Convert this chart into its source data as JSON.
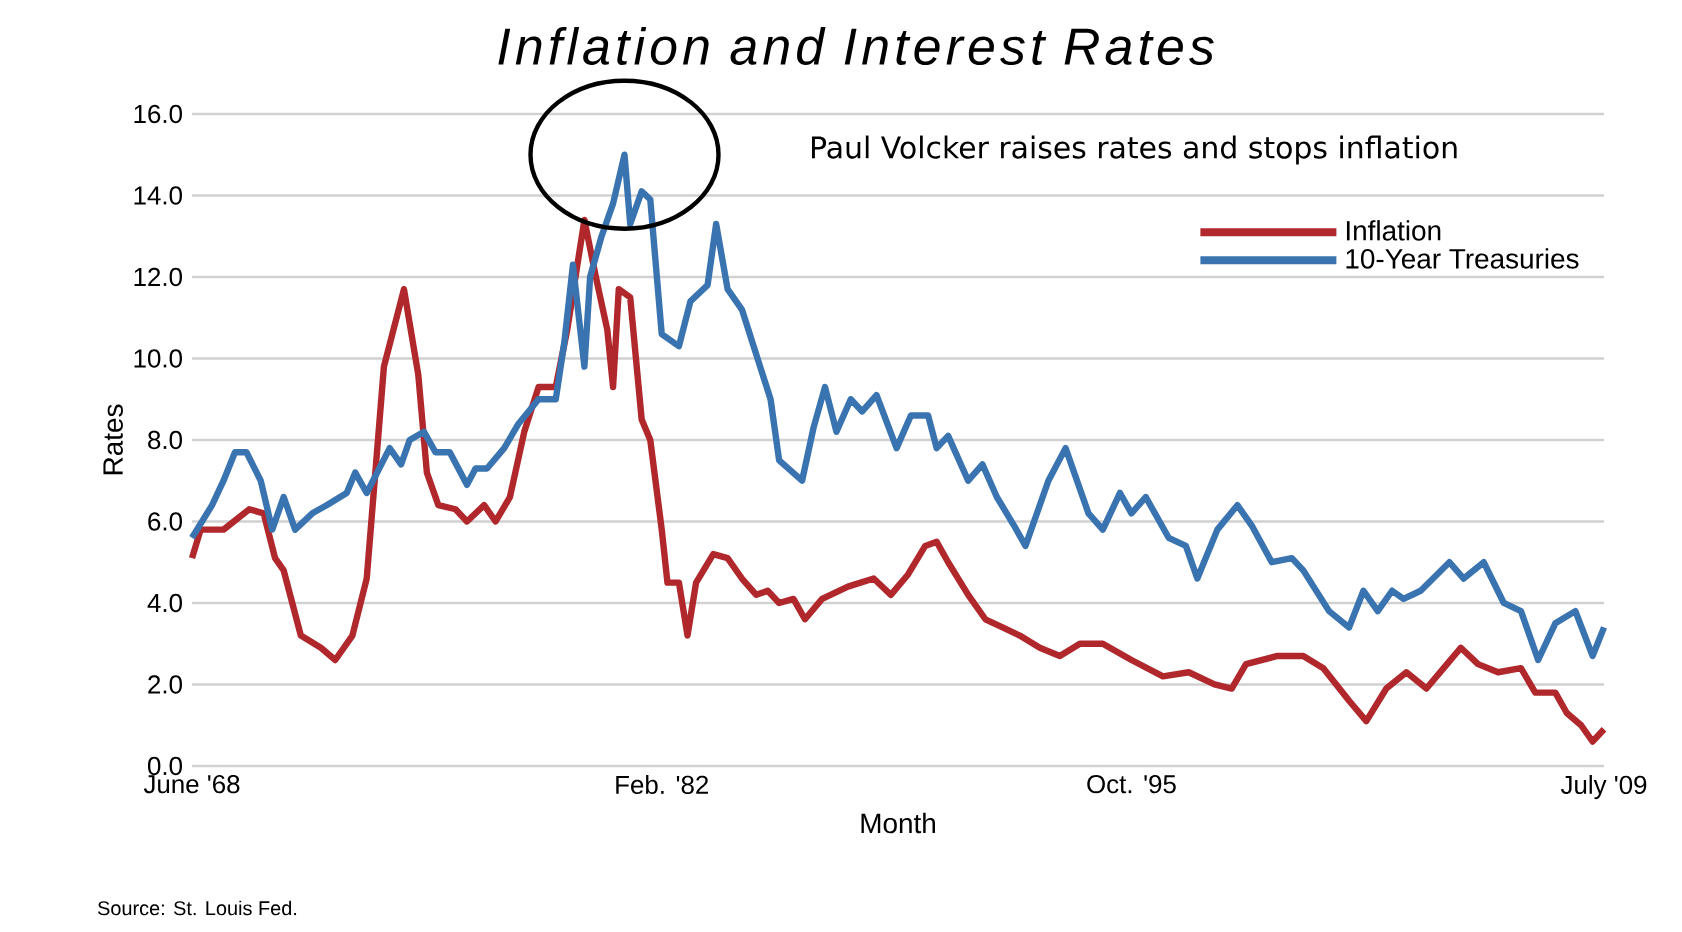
{
  "chart_data": {
    "type": "line",
    "title": "Inflation and Interest Rates",
    "xlabel": "Month",
    "ylabel": "Rates",
    "xlim": [
      "1968-06",
      "2009-07"
    ],
    "xticks": [
      {
        "value": "1968-06",
        "label": "June '68"
      },
      {
        "value": "1982-02",
        "label": "Feb. '82"
      },
      {
        "value": "1995-10",
        "label": "Oct. '95"
      },
      {
        "value": "2009-07",
        "label": "July '09"
      }
    ],
    "ylim": [
      0,
      16
    ],
    "yticks": [
      {
        "value": 0,
        "label": "0.0"
      },
      {
        "value": 2,
        "label": "2.0"
      },
      {
        "value": 4,
        "label": "4.0"
      },
      {
        "value": 6,
        "label": "6.0"
      },
      {
        "value": 8,
        "label": "8.0"
      },
      {
        "value": 10,
        "label": "10.0"
      },
      {
        "value": 12,
        "label": "12.0"
      },
      {
        "value": 14,
        "label": "14.0"
      },
      {
        "value": 16,
        "label": "16.0"
      }
    ],
    "grid": "y",
    "legend": "top right",
    "series": [
      {
        "name": "Inflation",
        "color": "#b0282c",
        "x": [
          "1968-06",
          "1968-09",
          "1969-05",
          "1970-02",
          "1970-07",
          "1970-11",
          "1971-02",
          "1971-08",
          "1972-03",
          "1972-08",
          "1973-02",
          "1973-07",
          "1974-01",
          "1974-08",
          "1975-01",
          "1975-04",
          "1975-08",
          "1976-02",
          "1976-06",
          "1976-12",
          "1977-04",
          "1977-09",
          "1978-02",
          "1978-07",
          "1979-01",
          "1979-05",
          "1979-11",
          "1980-03",
          "1980-07",
          "1980-09",
          "1980-11",
          "1981-03",
          "1981-07",
          "1981-10",
          "1982-02",
          "1982-04",
          "1982-08",
          "1982-11",
          "1983-02",
          "1983-08",
          "1984-01",
          "1984-06",
          "1984-11",
          "1985-03",
          "1985-07",
          "1985-12",
          "1986-04",
          "1986-10",
          "1987-07",
          "1988-04",
          "1988-10",
          "1989-04",
          "1989-10",
          "1990-02",
          "1990-06",
          "1991-01",
          "1991-07",
          "1992-01",
          "1992-07",
          "1993-02",
          "1993-09",
          "1994-04",
          "1994-10",
          "1994-12",
          "1995-10",
          "1996-09",
          "1997-06",
          "1998-03",
          "1998-09",
          "1999-02",
          "2000-01",
          "2000-10",
          "2001-05",
          "2002-02",
          "2002-08",
          "2003-03",
          "2003-10",
          "2004-05",
          "2004-11",
          "2005-05",
          "2005-11",
          "2006-06",
          "2007-02",
          "2007-07",
          "2008-02",
          "2008-06",
          "2008-11",
          "2009-03",
          "2009-07"
        ],
        "values": [
          5.1,
          5.8,
          5.8,
          6.3,
          6.2,
          5.1,
          4.8,
          3.2,
          2.9,
          2.6,
          3.2,
          4.6,
          9.8,
          11.7,
          9.6,
          7.2,
          6.4,
          6.3,
          6.0,
          6.4,
          6.0,
          6.6,
          8.2,
          9.3,
          9.3,
          10.7,
          13.4,
          12.0,
          10.7,
          9.3,
          11.7,
          11.5,
          8.5,
          8.0,
          5.8,
          4.5,
          4.5,
          3.2,
          4.5,
          5.2,
          5.1,
          4.6,
          4.2,
          4.3,
          4.0,
          4.1,
          3.6,
          4.1,
          4.4,
          4.6,
          4.2,
          4.7,
          5.4,
          5.5,
          5.0,
          4.2,
          3.6,
          3.4,
          3.2,
          2.9,
          2.7,
          3.0,
          3.0,
          3.0,
          2.6,
          2.2,
          2.3,
          2.0,
          1.9,
          2.5,
          2.7,
          2.7,
          2.4,
          1.6,
          1.1,
          1.9,
          2.3,
          1.9,
          2.4,
          2.9,
          2.5,
          2.3,
          2.4,
          1.8,
          1.8,
          1.3,
          1.0,
          0.6,
          0.9
        ]
      },
      {
        "name": "10-Year Treasuries",
        "color": "#3a74b0",
        "x": [
          "1968-06",
          "1969-01",
          "1969-05",
          "1969-09",
          "1970-01",
          "1970-06",
          "1970-10",
          "1971-02",
          "1971-06",
          "1971-12",
          "1972-05",
          "1972-12",
          "1973-03",
          "1973-07",
          "1974-03",
          "1974-07",
          "1974-10",
          "1975-03",
          "1975-07",
          "1975-12",
          "1976-06",
          "1976-09",
          "1977-01",
          "1977-07",
          "1977-12",
          "1978-07",
          "1979-01",
          "1979-04",
          "1979-07",
          "1979-11",
          "1980-01",
          "1980-05",
          "1980-09",
          "1981-01",
          "1981-03",
          "1981-07",
          "1981-10",
          "1982-02",
          "1982-08",
          "1982-12",
          "1983-06",
          "1983-09",
          "1984-01",
          "1984-06",
          "1984-11",
          "1985-04",
          "1985-07",
          "1986-03",
          "1986-07",
          "1986-11",
          "1987-03",
          "1987-08",
          "1987-12",
          "1988-05",
          "1988-12",
          "1989-05",
          "1989-11",
          "1990-02",
          "1990-06",
          "1991-01",
          "1991-06",
          "1991-11",
          "1992-05",
          "1992-09",
          "1993-05",
          "1993-11",
          "1994-07",
          "1994-12",
          "1995-06",
          "1995-10",
          "1996-03",
          "1996-11",
          "1997-05",
          "1997-09",
          "1998-04",
          "1998-11",
          "1999-04",
          "1999-11",
          "2000-06",
          "2000-10",
          "2001-07",
          "2002-02",
          "2002-07",
          "2002-12",
          "2003-05",
          "2003-09",
          "2004-03",
          "2005-01",
          "2005-06",
          "2006-01",
          "2006-08",
          "2007-02",
          "2007-08",
          "2008-02",
          "2008-09",
          "2009-03",
          "2009-07"
        ],
        "values": [
          5.6,
          6.4,
          7.0,
          7.7,
          7.7,
          7.0,
          5.8,
          6.6,
          5.8,
          6.2,
          6.4,
          6.7,
          7.2,
          6.7,
          7.8,
          7.4,
          8.0,
          8.2,
          7.7,
          7.7,
          6.9,
          7.3,
          7.3,
          7.8,
          8.4,
          9.0,
          9.0,
          10.4,
          12.3,
          9.8,
          12.0,
          13.0,
          13.8,
          15.0,
          13.3,
          14.1,
          13.9,
          10.6,
          10.3,
          11.4,
          11.8,
          13.3,
          11.7,
          11.2,
          10.1,
          9.0,
          7.5,
          7.0,
          8.3,
          9.3,
          8.2,
          9.0,
          8.7,
          9.1,
          7.8,
          8.6,
          8.6,
          7.8,
          8.1,
          7.0,
          7.4,
          6.6,
          5.9,
          5.4,
          7.0,
          7.8,
          6.2,
          5.8,
          6.7,
          6.2,
          6.6,
          5.6,
          5.4,
          4.6,
          5.8,
          6.4,
          5.9,
          5.0,
          5.1,
          4.8,
          3.8,
          3.4,
          4.3,
          3.8,
          4.3,
          4.1,
          4.3,
          5.0,
          4.6,
          5.0,
          4.0,
          3.8,
          2.6,
          3.5,
          3.8,
          2.7,
          3.4
        ]
      }
    ],
    "annotations": [
      "Paul Volcker raises rates and stops inflation",
      "Source: St. Louis Fed."
    ]
  }
}
